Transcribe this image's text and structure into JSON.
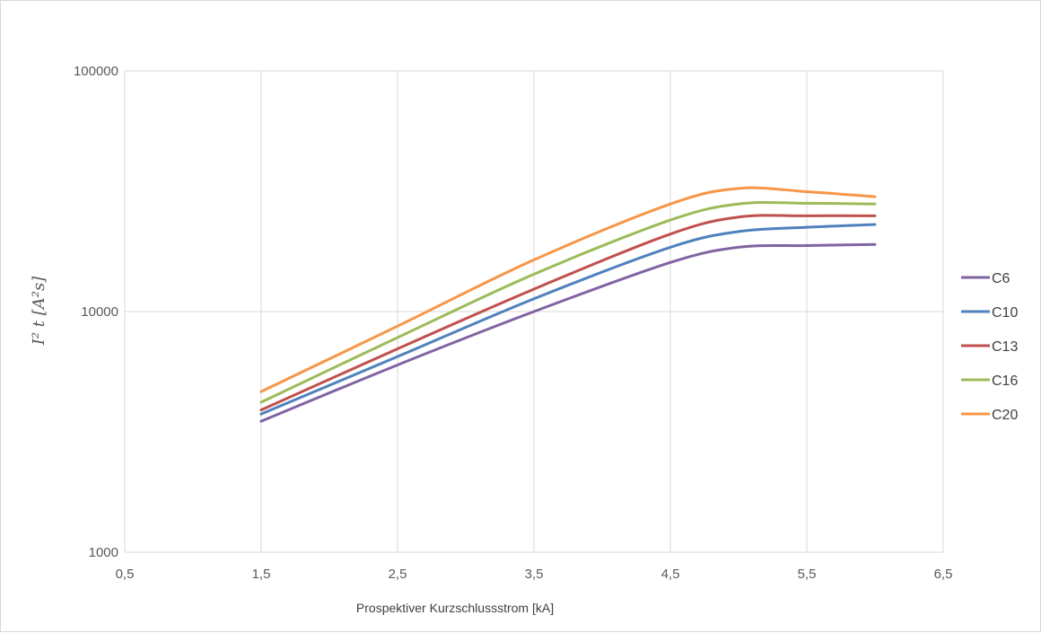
{
  "chart_data": {
    "type": "line",
    "xlabel": "Prospektiver Kurzschlussstrom [kA]",
    "ylabel": "I² t [A²s]",
    "xlim": [
      0.5,
      6.5
    ],
    "ylim": [
      1000,
      100000
    ],
    "y_scale": "log",
    "grid": true,
    "x_ticks": [
      "0,5",
      "1,5",
      "2,5",
      "3,5",
      "4,5",
      "5,5",
      "6,5"
    ],
    "y_ticks": [
      "1000",
      "10000",
      "100000"
    ],
    "legend_position": "right",
    "x": [
      1.5,
      2.5,
      3.5,
      4.5,
      5.0,
      5.5,
      6.0
    ],
    "series": [
      {
        "name": "C6",
        "color": "#8064a2",
        "values": [
          3500,
          6000,
          10000,
          16000,
          18500,
          18800,
          19000
        ]
      },
      {
        "name": "C10",
        "color": "#4f81bd",
        "values": [
          3750,
          6500,
          11300,
          18500,
          21500,
          22400,
          23000
        ]
      },
      {
        "name": "C13",
        "color": "#c0504d",
        "values": [
          3900,
          7000,
          12400,
          21000,
          24700,
          25000,
          25000
        ]
      },
      {
        "name": "C16",
        "color": "#9bbb59",
        "values": [
          4200,
          7800,
          14300,
          24000,
          28000,
          28200,
          28000
        ]
      },
      {
        "name": "C20",
        "color": "#f79646",
        "values": [
          4650,
          8700,
          16400,
          28000,
          32500,
          31500,
          30000
        ]
      }
    ]
  }
}
